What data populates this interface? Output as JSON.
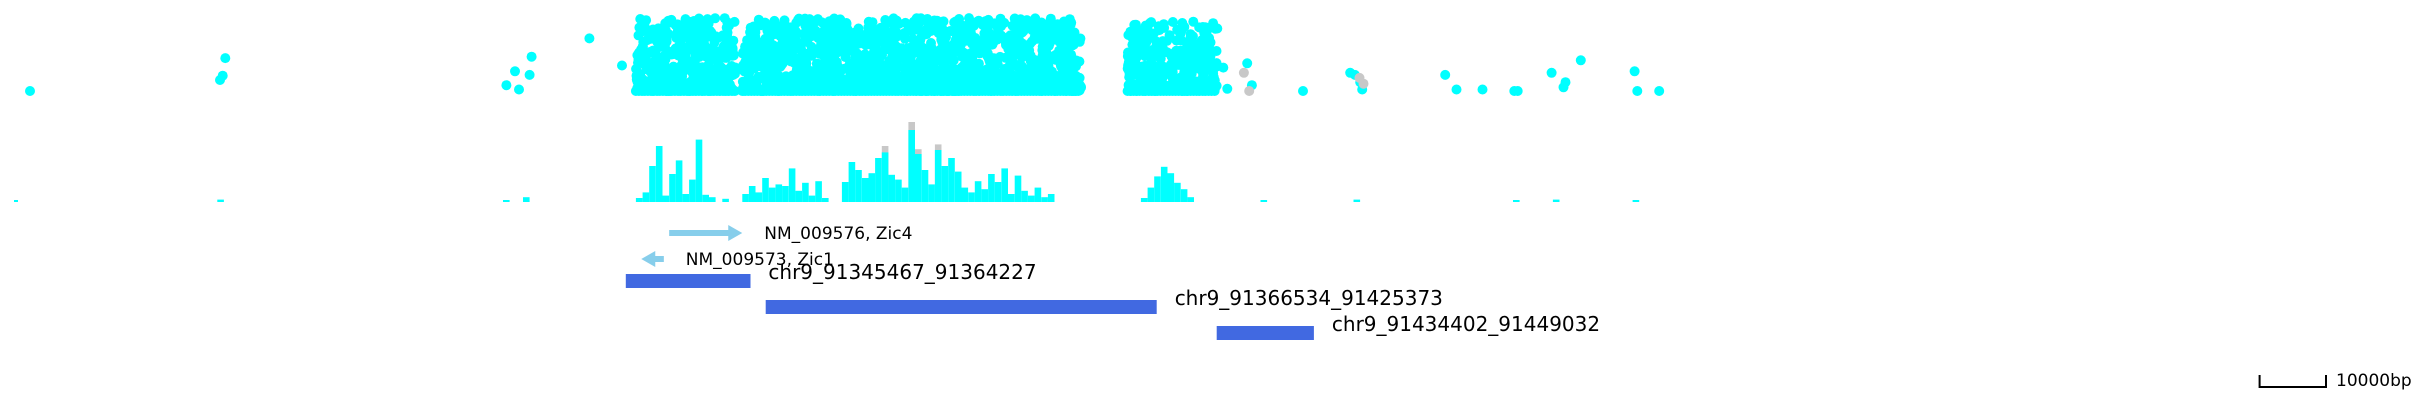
{
  "colors": {
    "signal": "#00ffff",
    "dim": "#c8c8c8",
    "gene": "#87ceeb",
    "region": "#4169e1",
    "scale": "#000000"
  },
  "genome": {
    "chrom": "chr9",
    "view_start": 91254000,
    "view_end": 91488000
  },
  "genes": [
    {
      "name_label": "NM_009576, Zic4",
      "start": 91352000,
      "end": 91363000,
      "strand": "+"
    },
    {
      "name_label": "NM_009573, Zic1",
      "start": 91347800,
      "end": 91351200,
      "strand": "-"
    }
  ],
  "regions": [
    {
      "label": "chr9_91345467_91364227",
      "start": 91345467,
      "end": 91364227
    },
    {
      "label": "chr9_91366534_91425373",
      "start": 91366534,
      "end": 91425373
    },
    {
      "label": "chr9_91434402_91449032",
      "start": 91434402,
      "end": 91449032
    }
  ],
  "scale_bar": {
    "label": "10000bp",
    "length_bp": 10000
  },
  "chart_data": {
    "type": "scatter",
    "dot_track": {
      "dense_blocks": [
        {
          "start": 91347000,
          "end": 91362000,
          "max_level": 1.0
        },
        {
          "start": 91363000,
          "end": 91414000,
          "max_level": 1.0
        },
        {
          "start": 91421000,
          "end": 91434500,
          "max_level": 0.95
        }
      ],
      "sparse_dots": [
        [
          91255800,
          0.0
        ],
        [
          91284400,
          0.15
        ],
        [
          91284800,
          0.21
        ],
        [
          91285200,
          0.45
        ],
        [
          91327500,
          0.08
        ],
        [
          91328800,
          0.27
        ],
        [
          91329400,
          0.02
        ],
        [
          91331000,
          0.22
        ],
        [
          91331300,
          0.47
        ],
        [
          91340000,
          0.72
        ],
        [
          91344900,
          0.35
        ],
        [
          91435400,
          0.32
        ],
        [
          91436000,
          0.03
        ],
        [
          91439000,
          0.38
        ],
        [
          91439700,
          0.08
        ],
        [
          91447400,
          0.0
        ],
        [
          91454500,
          0.25
        ],
        [
          91455200,
          0.22
        ],
        [
          91456000,
          0.12
        ],
        [
          91456300,
          0.02
        ],
        [
          91468800,
          0.22
        ],
        [
          91470500,
          0.02
        ],
        [
          91474400,
          0.02
        ],
        [
          91479200,
          0.0
        ],
        [
          91479700,
          0.0
        ],
        [
          91484800,
          0.25
        ],
        [
          91486600,
          0.05
        ],
        [
          91486900,
          0.12
        ],
        [
          91489200,
          0.42
        ],
        [
          91497300,
          0.27
        ],
        [
          91497700,
          0.0
        ],
        [
          91501000,
          0.0
        ]
      ],
      "dim_dots": [
        [
          91438500,
          0.25
        ],
        [
          91439300,
          0.0
        ],
        [
          91455900,
          0.18
        ],
        [
          91456500,
          0.1
        ]
      ]
    },
    "bar_track": {
      "bins_bp": 1000,
      "bars": [
        [
          91347000,
          0.05
        ],
        [
          91348000,
          0.12
        ],
        [
          91349000,
          0.45
        ],
        [
          91350000,
          0.7
        ],
        [
          91351000,
          0.08
        ],
        [
          91352000,
          0.35
        ],
        [
          91353000,
          0.52
        ],
        [
          91354000,
          0.1
        ],
        [
          91355000,
          0.28
        ],
        [
          91356000,
          0.78
        ],
        [
          91357000,
          0.09
        ],
        [
          91358000,
          0.06
        ],
        [
          91360000,
          0.04
        ],
        [
          91363000,
          0.1
        ],
        [
          91364000,
          0.2
        ],
        [
          91365000,
          0.12
        ],
        [
          91366000,
          0.3
        ],
        [
          91367000,
          0.18
        ],
        [
          91368000,
          0.22
        ],
        [
          91369000,
          0.2
        ],
        [
          91370000,
          0.42
        ],
        [
          91371000,
          0.14
        ],
        [
          91372000,
          0.24
        ],
        [
          91373000,
          0.08
        ],
        [
          91374000,
          0.26
        ],
        [
          91375000,
          0.05
        ],
        [
          91378000,
          0.25
        ],
        [
          91379000,
          0.5
        ],
        [
          91380000,
          0.4
        ],
        [
          91381000,
          0.3
        ],
        [
          91382000,
          0.36
        ],
        [
          91383000,
          0.55
        ],
        [
          91384000,
          0.62
        ],
        [
          91385000,
          0.34
        ],
        [
          91386000,
          0.28
        ],
        [
          91387000,
          0.18
        ],
        [
          91388000,
          0.9
        ],
        [
          91389000,
          0.6
        ],
        [
          91390000,
          0.4
        ],
        [
          91391000,
          0.22
        ],
        [
          91392000,
          0.65
        ],
        [
          91393000,
          0.45
        ],
        [
          91394000,
          0.55
        ],
        [
          91395000,
          0.38
        ],
        [
          91396000,
          0.18
        ],
        [
          91397000,
          0.12
        ],
        [
          91398000,
          0.26
        ],
        [
          91399000,
          0.16
        ],
        [
          91400000,
          0.35
        ],
        [
          91401000,
          0.25
        ],
        [
          91402000,
          0.42
        ],
        [
          91403000,
          0.1
        ],
        [
          91404000,
          0.33
        ],
        [
          91405000,
          0.14
        ],
        [
          91406000,
          0.08
        ],
        [
          91407000,
          0.18
        ],
        [
          91408000,
          0.06
        ],
        [
          91409000,
          0.1
        ],
        [
          91423000,
          0.05
        ],
        [
          91424000,
          0.18
        ],
        [
          91425000,
          0.32
        ],
        [
          91426000,
          0.44
        ],
        [
          91427000,
          0.36
        ],
        [
          91428000,
          0.24
        ],
        [
          91429000,
          0.16
        ],
        [
          91430000,
          0.06
        ],
        [
          91284000,
          0.03
        ],
        [
          91327000,
          0.02
        ],
        [
          91330000,
          0.06
        ],
        [
          91441000,
          0.02
        ],
        [
          91455000,
          0.03
        ],
        [
          91479000,
          0.02
        ],
        [
          91485000,
          0.03
        ],
        [
          91497000,
          0.02
        ]
      ],
      "dim_caps": [
        [
          91384000,
          0.7
        ],
        [
          91388000,
          1.0
        ],
        [
          91392000,
          0.72
        ],
        [
          91389000,
          0.66
        ]
      ]
    }
  }
}
